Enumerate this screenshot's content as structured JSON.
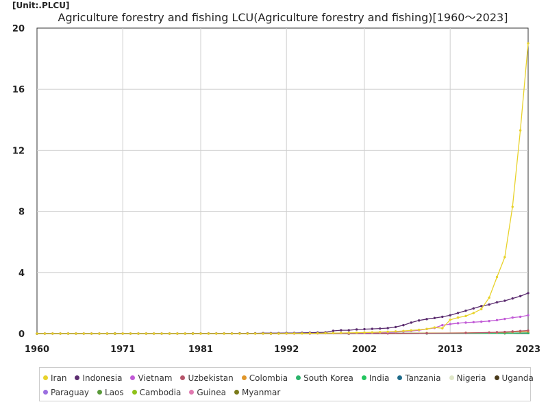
{
  "unit_label": "[Unit:.PLCU]",
  "chart_data": {
    "type": "line",
    "title": "Agriculture forestry and fishing LCU(Agriculture forestry and fishing)[1960～2023]",
    "xlabel": "",
    "ylabel": "",
    "xlim": [
      1960,
      2023
    ],
    "ylim": [
      0,
      20
    ],
    "x_ticks": [
      1960,
      1971,
      1981,
      1992,
      2002,
      2013,
      2023
    ],
    "y_ticks": [
      0,
      4,
      8,
      12,
      16,
      20
    ],
    "grid": true,
    "legend_position": "bottom",
    "series": [
      {
        "name": "Iran",
        "color": "#e8d22a",
        "x": [
          1960,
          1961,
          1962,
          1963,
          1964,
          1965,
          1966,
          1967,
          1968,
          1969,
          1970,
          1971,
          1972,
          1973,
          1974,
          1975,
          1976,
          1977,
          1978,
          1979,
          1980,
          1981,
          1982,
          1983,
          1984,
          1985,
          1986,
          1987,
          1988,
          1989,
          1990,
          1991,
          1992,
          1993,
          1994,
          1995,
          1996,
          1997,
          1998,
          1999,
          2000,
          2001,
          2002,
          2003,
          2004,
          2005,
          2006,
          2007,
          2008,
          2009,
          2010,
          2011,
          2012,
          2013,
          2014,
          2015,
          2016,
          2017,
          2018,
          2019,
          2020,
          2021,
          2022,
          2023
        ],
        "values": [
          0.0,
          0.0,
          0.0,
          0.0,
          0.0,
          0.0,
          0.0,
          0.0,
          0.0,
          0.0,
          0.0,
          0.0,
          0.0,
          0.0,
          0.0,
          0.0,
          0.0,
          0.0,
          0.0,
          0.0,
          0.0,
          0.0,
          0.0,
          0.0,
          0.0,
          0.0,
          0.0,
          0.0,
          0.0,
          0.0,
          0.0,
          0.0,
          0.01,
          0.01,
          0.01,
          0.02,
          0.02,
          0.03,
          0.03,
          0.04,
          0.05,
          0.06,
          0.07,
          0.08,
          0.1,
          0.12,
          0.14,
          0.17,
          0.21,
          0.25,
          0.3,
          0.4,
          0.35,
          0.9,
          1.05,
          1.15,
          1.35,
          1.6,
          2.35,
          3.7,
          5.0,
          8.3,
          13.3,
          19.0
        ]
      },
      {
        "name": "Indonesia",
        "color": "#5b2c6f",
        "x": [
          1960,
          1961,
          1962,
          1963,
          1964,
          1965,
          1966,
          1967,
          1968,
          1969,
          1970,
          1971,
          1972,
          1973,
          1974,
          1975,
          1976,
          1977,
          1978,
          1979,
          1980,
          1981,
          1982,
          1983,
          1984,
          1985,
          1986,
          1987,
          1988,
          1989,
          1990,
          1991,
          1992,
          1993,
          1994,
          1995,
          1996,
          1997,
          1998,
          1999,
          2000,
          2001,
          2002,
          2003,
          2004,
          2005,
          2006,
          2007,
          2008,
          2009,
          2010,
          2011,
          2012,
          2013,
          2014,
          2015,
          2016,
          2017,
          2018,
          2019,
          2020,
          2021,
          2022,
          2023
        ],
        "values": [
          0.0,
          0.0,
          0.0,
          0.0,
          0.0,
          0.0,
          0.0,
          0.0,
          0.0,
          0.0,
          0.0,
          0.0,
          0.0,
          0.0,
          0.0,
          0.0,
          0.0,
          0.0,
          0.0,
          0.0,
          0.01,
          0.01,
          0.01,
          0.01,
          0.01,
          0.01,
          0.02,
          0.02,
          0.02,
          0.03,
          0.03,
          0.03,
          0.04,
          0.04,
          0.05,
          0.06,
          0.07,
          0.08,
          0.18,
          0.22,
          0.22,
          0.27,
          0.29,
          0.31,
          0.33,
          0.36,
          0.43,
          0.55,
          0.72,
          0.86,
          0.95,
          1.02,
          1.1,
          1.2,
          1.35,
          1.5,
          1.65,
          1.8,
          1.9,
          2.05,
          2.15,
          2.3,
          2.45,
          2.65
        ]
      },
      {
        "name": "Vietnam",
        "color": "#c15ad6",
        "x": [
          1960,
          1961,
          1962,
          1963,
          1964,
          1965,
          1966,
          1967,
          1968,
          1969,
          1970,
          1971,
          1972,
          1973,
          1974,
          1975,
          1976,
          1977,
          1978,
          1979,
          1980,
          1981,
          1982,
          1983,
          1984,
          1985,
          1986,
          1987,
          1988,
          1989,
          1990,
          1991,
          1992,
          1993,
          1994,
          1995,
          1996,
          1997,
          1998,
          1999,
          2000,
          2001,
          2002,
          2003,
          2004,
          2005,
          2006,
          2007,
          2008,
          2009,
          2010,
          2011,
          2012,
          2013,
          2014,
          2015,
          2016,
          2017,
          2018,
          2019,
          2020,
          2021,
          2022,
          2023
        ],
        "values": [
          0.0,
          0.0,
          0.0,
          0.0,
          0.0,
          0.0,
          0.0,
          0.0,
          0.0,
          0.0,
          0.0,
          0.0,
          0.0,
          0.0,
          0.0,
          0.0,
          0.0,
          0.0,
          0.0,
          0.0,
          0.0,
          0.0,
          0.0,
          0.0,
          0.0,
          0.0,
          0.0,
          0.0,
          0.0,
          0.0,
          0.0,
          0.0,
          0.0,
          0.0,
          0.01,
          0.01,
          0.01,
          0.02,
          0.02,
          0.02,
          0.03,
          0.04,
          0.04,
          0.05,
          0.07,
          0.08,
          0.1,
          0.13,
          0.17,
          0.22,
          0.3,
          0.37,
          0.55,
          0.62,
          0.68,
          0.72,
          0.75,
          0.78,
          0.82,
          0.88,
          0.96,
          1.05,
          1.1,
          1.2
        ]
      },
      {
        "name": "Uzbekistan",
        "color": "#b5556a",
        "x": [
          1990,
          1995,
          2000,
          2005,
          2010,
          2015,
          2018,
          2019,
          2020,
          2021,
          2022,
          2023
        ],
        "values": [
          0.0,
          0.0,
          0.0,
          0.01,
          0.02,
          0.04,
          0.07,
          0.09,
          0.11,
          0.14,
          0.17,
          0.2
        ]
      },
      {
        "name": "Colombia",
        "color": "#e0962a",
        "x": [
          1960,
          1970,
          1980,
          1990,
          2000,
          2005,
          2010,
          2015,
          2018,
          2019,
          2020,
          2021,
          2022,
          2023
        ],
        "values": [
          0.0,
          0.0,
          0.0,
          0.0,
          0.01,
          0.02,
          0.03,
          0.05,
          0.07,
          0.08,
          0.09,
          0.11,
          0.13,
          0.14
        ]
      },
      {
        "name": "South Korea",
        "color": "#2ab36a",
        "x": [
          1960,
          1970,
          1980,
          1990,
          2000,
          2010,
          2020,
          2023
        ],
        "values": [
          0.0,
          0.0,
          0.0,
          0.01,
          0.02,
          0.03,
          0.03,
          0.03
        ]
      },
      {
        "name": "India",
        "color": "#22c55e",
        "x": [
          1960,
          1970,
          1980,
          1990,
          2000,
          2010,
          2020,
          2023
        ],
        "values": [
          0.0,
          0.0,
          0.0,
          0.0,
          0.0,
          0.01,
          0.02,
          0.03
        ]
      },
      {
        "name": "Tanzania",
        "color": "#1f6b8a",
        "x": [
          1960,
          1970,
          1980,
          1990,
          2000,
          2010,
          2020,
          2023
        ],
        "values": [
          0.0,
          0.0,
          0.0,
          0.0,
          0.0,
          0.01,
          0.03,
          0.04
        ]
      },
      {
        "name": "Nigeria",
        "color": "#dfe7c8",
        "x": [
          1960,
          1970,
          1980,
          1990,
          2000,
          2010,
          2020,
          2023
        ],
        "values": [
          0.0,
          0.0,
          0.0,
          0.0,
          0.0,
          0.01,
          0.02,
          0.04
        ]
      },
      {
        "name": "Uganda",
        "color": "#4a3a1a",
        "x": [
          1960,
          1970,
          1980,
          1990,
          2000,
          2010,
          2020,
          2023
        ],
        "values": [
          0.0,
          0.0,
          0.0,
          0.0,
          0.0,
          0.01,
          0.02,
          0.03
        ]
      },
      {
        "name": "Paraguay",
        "color": "#9b6fe0",
        "x": [
          1960,
          1970,
          1980,
          1990,
          2000,
          2010,
          2020,
          2023
        ],
        "values": [
          0.0,
          0.0,
          0.0,
          0.0,
          0.0,
          0.01,
          0.02,
          0.03
        ]
      },
      {
        "name": "Laos",
        "color": "#5a9a3a",
        "x": [
          1960,
          1970,
          1980,
          1990,
          2000,
          2010,
          2020,
          2023
        ],
        "values": [
          0.0,
          0.0,
          0.0,
          0.0,
          0.0,
          0.01,
          0.03,
          0.05
        ]
      },
      {
        "name": "Cambodia",
        "color": "#8fc21a",
        "x": [
          1960,
          1970,
          1980,
          1990,
          2000,
          2010,
          2020,
          2023
        ],
        "values": [
          0.0,
          0.0,
          0.0,
          0.0,
          0.0,
          0.01,
          0.02,
          0.03
        ]
      },
      {
        "name": "Guinea",
        "color": "#e079b0",
        "x": [
          1960,
          1970,
          1980,
          1990,
          2000,
          2010,
          2020,
          2023
        ],
        "values": [
          0.0,
          0.0,
          0.0,
          0.0,
          0.0,
          0.01,
          0.02,
          0.04
        ]
      },
      {
        "name": "Myanmar",
        "color": "#7a7a1a",
        "x": [
          1960,
          1970,
          1980,
          1990,
          2000,
          2010,
          2020,
          2023
        ],
        "values": [
          0.0,
          0.0,
          0.0,
          0.0,
          0.0,
          0.01,
          0.02,
          0.03
        ]
      }
    ]
  }
}
